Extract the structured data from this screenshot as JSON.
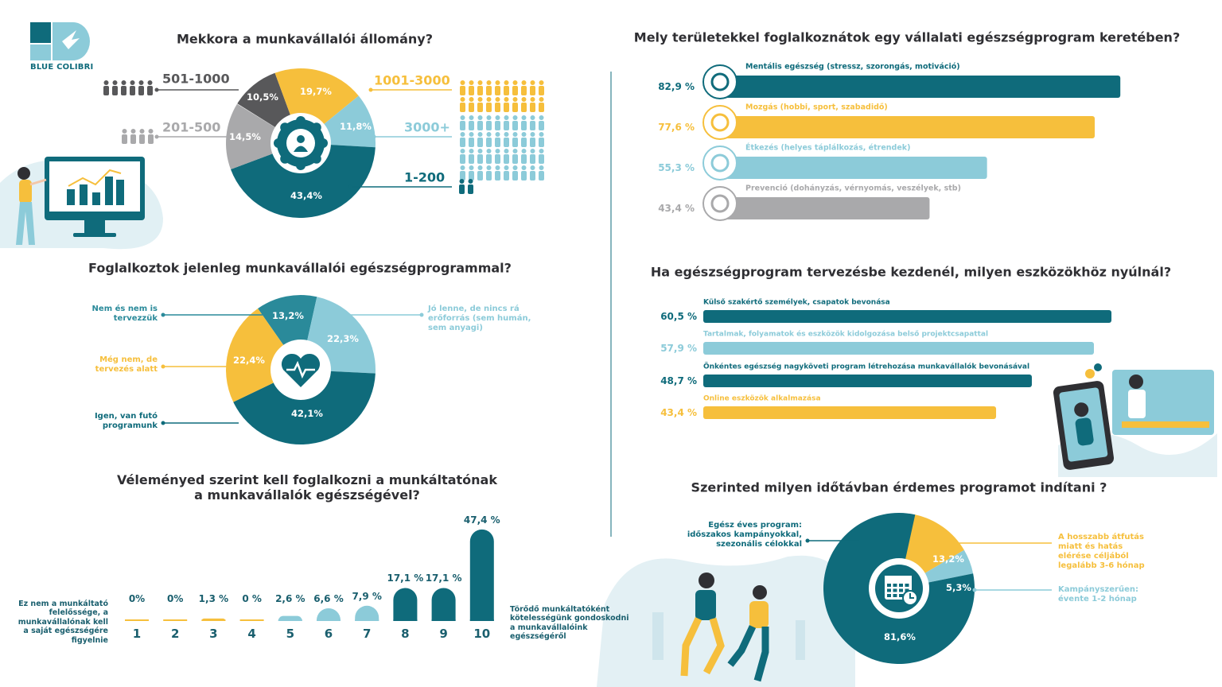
{
  "logo": "BLUE COLIBRI",
  "chart_data": [
    {
      "type": "pie",
      "title": "Mekkora a munkavállalói állomány?",
      "categories": [
        "501-1000",
        "1001-3000",
        "3000+",
        "1-200",
        "201-500"
      ],
      "values": [
        10.5,
        19.7,
        11.8,
        43.4,
        14.5
      ],
      "value_labels": [
        "10,5%",
        "19,7%",
        "11,8%",
        "43,4%",
        "14,5%"
      ],
      "colors": [
        "#58585a",
        "#f6bf3c",
        "#8ccbd9",
        "#0f6b7b",
        "#a9a9ab"
      ]
    },
    {
      "type": "bar",
      "orientation": "horizontal",
      "title": "Mely területekkel foglalkoznátok egy vállalati egészségprogram keretében?",
      "categories": [
        "Mentális egészség (stressz, szorongás, motiváció)",
        "Mozgás (hobbi, sport, szabadidő)",
        "Étkezés (helyes táplálkozás, étrendek)",
        "Prevenció (dohányzás, vérnyomás, veszélyek, stb)"
      ],
      "values": [
        82.9,
        77.6,
        55.3,
        43.4
      ],
      "value_labels": [
        "82,9 %",
        "77,6 %",
        "55,3 %",
        "43,4 %"
      ],
      "colors": [
        "#0f6b7b",
        "#f6bf3c",
        "#8ccbd9",
        "#a9a9ab"
      ]
    },
    {
      "type": "pie",
      "title": "Foglalkoztok jelenleg munkavállalói egészségprogrammal?",
      "categories": [
        "Nem és nem is tervezzük",
        "Jó lenne, de nincs rá erőforrás (sem humán, sem anyagi)",
        "Igen, van futó programunk",
        "Még nem, de tervezés alatt"
      ],
      "values": [
        13.2,
        22.3,
        42.1,
        22.4
      ],
      "value_labels": [
        "13,2%",
        "22,3%",
        "42,1%",
        "22,4%"
      ],
      "colors": [
        "#2a8a9a",
        "#8ccbd9",
        "#0f6b7b",
        "#f6bf3c"
      ]
    },
    {
      "type": "bar",
      "orientation": "horizontal",
      "title": "Ha egészségprogram tervezésbe kezdenél, milyen eszközökhöz nyúlnál?",
      "categories": [
        "Külső szakértő személyek, csapatok bevonása",
        "Tartalmak, folyamatok és eszközök kidolgozása belső projektcsapattal",
        "Önkéntes  egészség nagyköveti program létrehozása munkavállalók bevonásával",
        "Online eszközök alkalmazása"
      ],
      "values": [
        60.5,
        57.9,
        48.7,
        43.4
      ],
      "value_labels": [
        "60,5 %",
        "57,9 %",
        "48,7 %",
        "43,4 %"
      ],
      "colors": [
        "#0f6b7b",
        "#8ccbd9",
        "#0f6b7b",
        "#f6bf3c"
      ]
    },
    {
      "type": "bar",
      "orientation": "vertical",
      "title": "Véleményed szerint kell foglalkozni a munkáltatónak a munkavállalók egészségével?",
      "categories": [
        "1",
        "2",
        "3",
        "4",
        "5",
        "6",
        "7",
        "8",
        "9",
        "10"
      ],
      "values": [
        0,
        0,
        1.3,
        0,
        2.6,
        6.6,
        7.9,
        17.1,
        17.1,
        47.4
      ],
      "value_labels": [
        "0%",
        "0%",
        "1,3 %",
        "0 %",
        "2,6 %",
        "6,6 %",
        "7,9 %",
        "17,1 %",
        "17,1 %",
        "47,4 %"
      ],
      "colors": [
        "#f6bf3c",
        "#f6bf3c",
        "#f6bf3c",
        "#f6bf3c",
        "#8ccbd9",
        "#8ccbd9",
        "#8ccbd9",
        "#0f6b7b",
        "#0f6b7b",
        "#0f6b7b"
      ],
      "annotations": [
        "Ez nem a munkáltató felelőssége, a munkavállalónak kell a saját egészségére figyelnie",
        "Törődő munkáltatóként kötelességünk gondoskodni a munkavállalóink egészségéről"
      ]
    },
    {
      "type": "pie",
      "title": "Szerinted milyen időtávban érdemes programot indítani ?",
      "categories": [
        "A hosszabb átfutás miatt és hatás elérése céljából legalább 3-6 hónap",
        "Kampányszerűen: évente 1-2 hónap",
        "Egész éves program: időszakos kampányokkal, szezonális célokkal"
      ],
      "values": [
        13.2,
        5.3,
        81.6
      ],
      "value_labels": [
        "13,2%",
        "5,3%",
        "81,6%"
      ],
      "colors": [
        "#f6bf3c",
        "#8ccbd9",
        "#0f6b7b"
      ]
    }
  ]
}
